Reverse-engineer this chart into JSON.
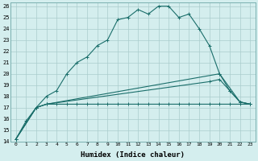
{
  "xlabel": "Humidex (Indice chaleur)",
  "bg_color": "#d4eeee",
  "grid_color": "#aacccc",
  "line_color": "#1a6e6a",
  "xlim": [
    -0.5,
    23.5
  ],
  "ylim": [
    14,
    26.3
  ],
  "xticks": [
    0,
    1,
    2,
    3,
    4,
    5,
    6,
    7,
    8,
    9,
    10,
    11,
    12,
    13,
    14,
    15,
    16,
    17,
    18,
    19,
    20,
    21,
    22,
    23
  ],
  "yticks": [
    14,
    15,
    16,
    17,
    18,
    19,
    20,
    21,
    22,
    23,
    24,
    25,
    26
  ],
  "line1_x": [
    0,
    1,
    2,
    3,
    4,
    5,
    6,
    7,
    8,
    9,
    10,
    11,
    12,
    13,
    14,
    15,
    16,
    17,
    18,
    19,
    20,
    21,
    22,
    23
  ],
  "line1_y": [
    14.2,
    15.8,
    17.0,
    17.3,
    17.3,
    17.3,
    17.3,
    17.3,
    17.3,
    17.3,
    17.3,
    17.3,
    17.3,
    17.3,
    17.3,
    17.3,
    17.3,
    17.3,
    17.3,
    17.3,
    17.3,
    17.3,
    17.3,
    17.3
  ],
  "line2_x": [
    0,
    2,
    3,
    4,
    5,
    6,
    7,
    8,
    9,
    10,
    11,
    12,
    13,
    14,
    15,
    16,
    17,
    18,
    19,
    20,
    21,
    22,
    23
  ],
  "line2_y": [
    14.2,
    17.0,
    18.0,
    18.5,
    20.0,
    21.0,
    21.5,
    22.5,
    23.0,
    24.8,
    25.0,
    25.7,
    25.3,
    26.0,
    26.0,
    25.0,
    25.3,
    24.0,
    22.5,
    20.0,
    18.5,
    17.5,
    17.3
  ],
  "line3_x": [
    0,
    2,
    3,
    20,
    22,
    23
  ],
  "line3_y": [
    14.2,
    17.0,
    17.3,
    20.0,
    17.5,
    17.3
  ],
  "line4_x": [
    0,
    2,
    3,
    19,
    20,
    21,
    22,
    23
  ],
  "line4_y": [
    14.2,
    17.0,
    17.3,
    19.3,
    19.5,
    18.5,
    17.5,
    17.3
  ]
}
